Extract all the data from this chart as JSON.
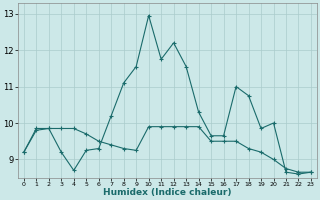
{
  "xlabel": "Humidex (Indice chaleur)",
  "ylabel": "",
  "bg_color": "#cce8e8",
  "grid_color": "#aacccc",
  "line_color": "#1a6b6b",
  "xlim": [
    -0.5,
    23.5
  ],
  "ylim": [
    8.5,
    13.3
  ],
  "yticks": [
    9,
    10,
    11,
    12,
    13
  ],
  "xticks": [
    0,
    1,
    2,
    3,
    4,
    5,
    6,
    7,
    8,
    9,
    10,
    11,
    12,
    13,
    14,
    15,
    16,
    17,
    18,
    19,
    20,
    21,
    22,
    23
  ],
  "series1_x": [
    0,
    1,
    2,
    3,
    4,
    5,
    6,
    7,
    8,
    9,
    10,
    11,
    12,
    13,
    14,
    15,
    16,
    17,
    18,
    19,
    20,
    21,
    22,
    23
  ],
  "series1_y": [
    9.2,
    9.8,
    9.85,
    9.2,
    8.7,
    9.25,
    9.3,
    10.2,
    11.1,
    11.55,
    12.95,
    11.75,
    12.2,
    11.55,
    10.3,
    9.65,
    9.65,
    11.0,
    10.75,
    9.85,
    10.0,
    8.65,
    8.6,
    8.65
  ],
  "series2_x": [
    0,
    1,
    2,
    3,
    4,
    5,
    6,
    7,
    8,
    9,
    10,
    11,
    12,
    13,
    14,
    15,
    16,
    17,
    18,
    19,
    20,
    21,
    22,
    23
  ],
  "series2_y": [
    9.2,
    9.85,
    9.85,
    9.85,
    9.85,
    9.7,
    9.5,
    9.4,
    9.3,
    9.25,
    9.9,
    9.9,
    9.9,
    9.9,
    9.9,
    9.5,
    9.5,
    9.5,
    9.3,
    9.2,
    9.0,
    8.75,
    8.65,
    8.65
  ],
  "marker": "+",
  "markersize": 3,
  "linewidth": 0.8
}
